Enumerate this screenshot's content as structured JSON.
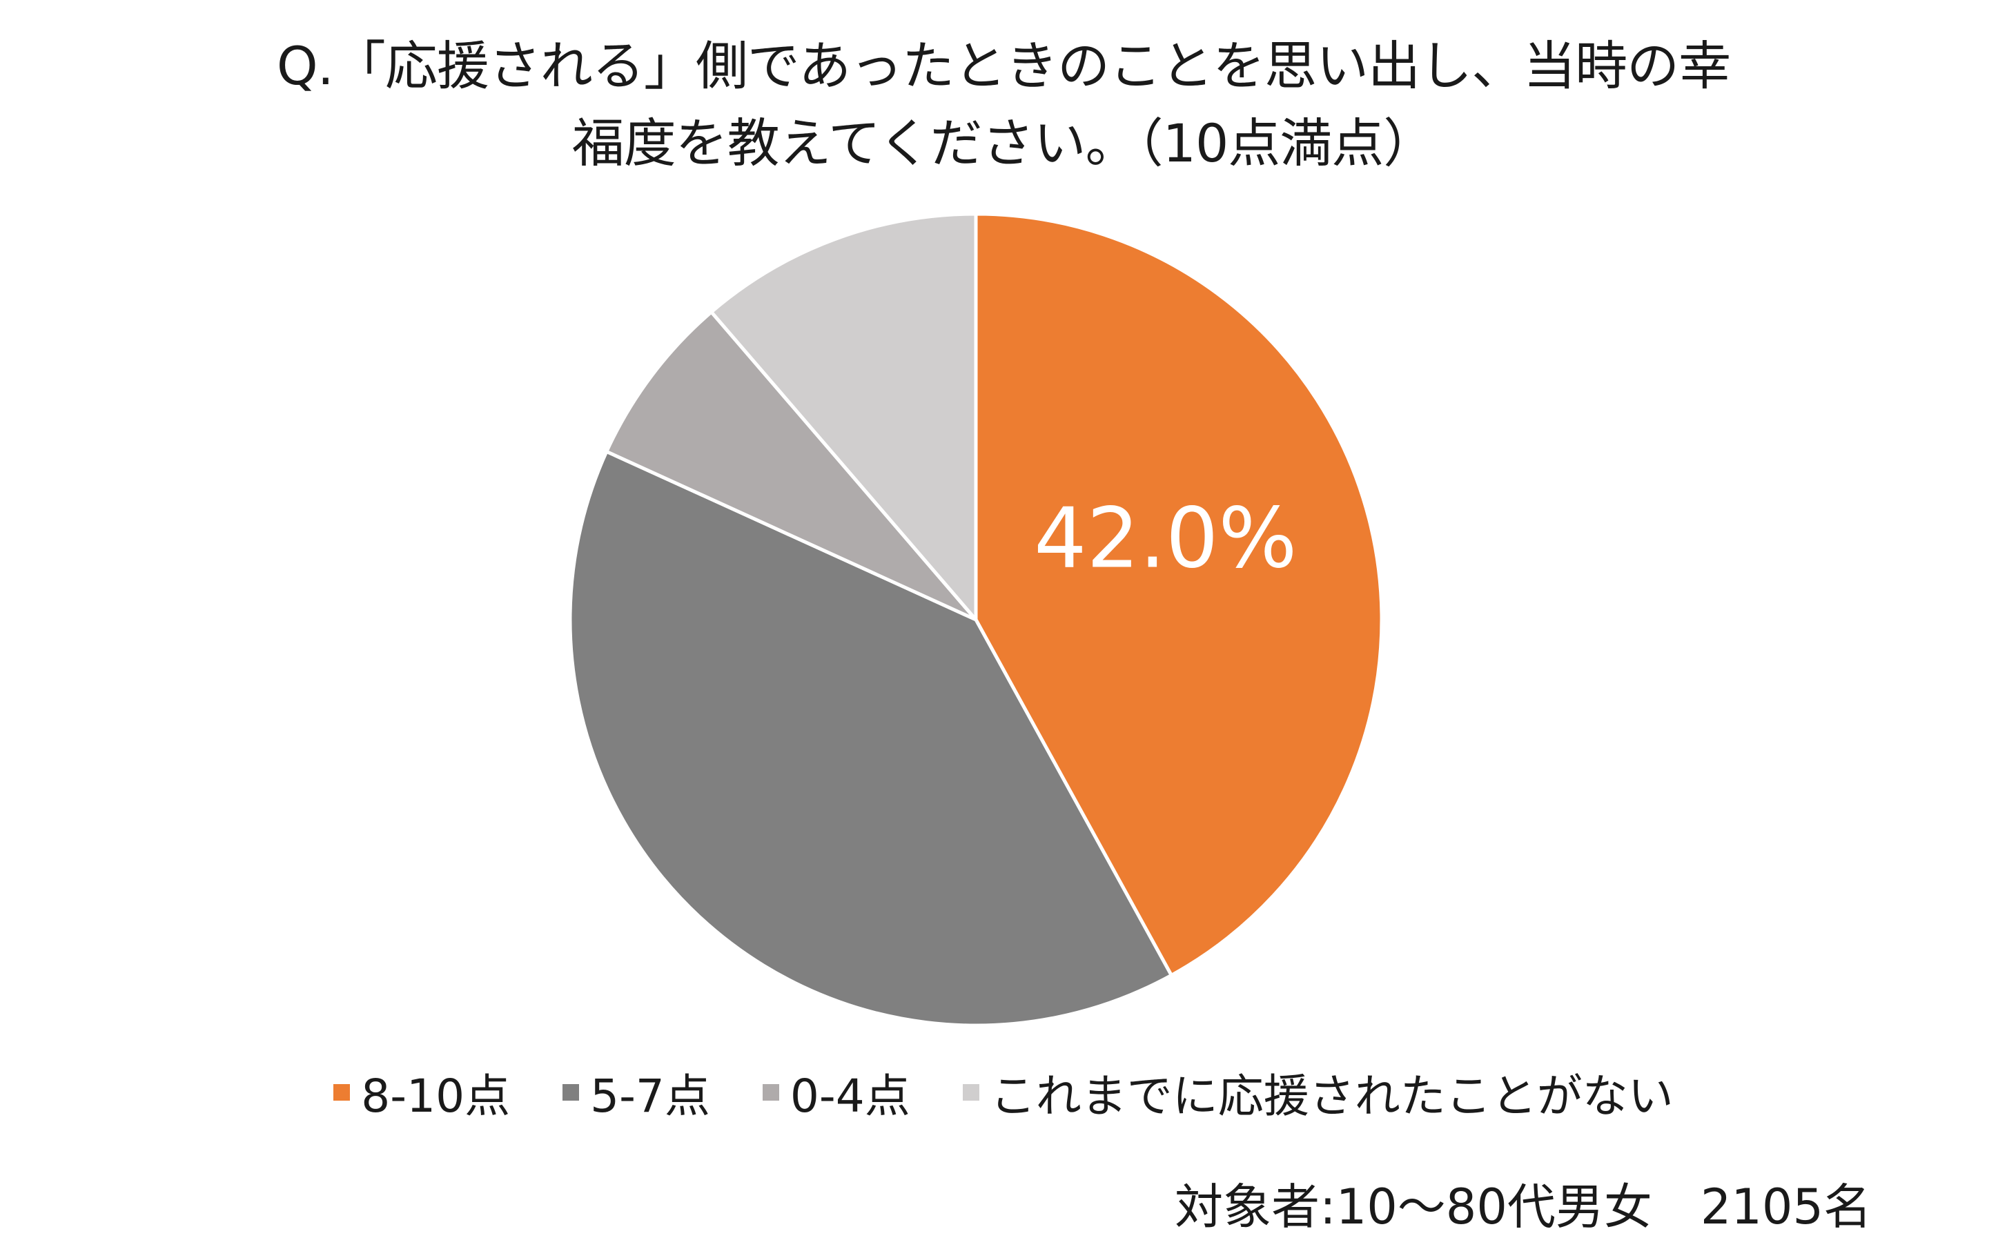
{
  "chart_data": {
    "type": "pie",
    "title_lines": [
      "Q.「応援される」側であったときのことを思い出し、当時の幸",
      "福度を教えてください。（10点満点）"
    ],
    "categories": [
      "8-10点",
      "5-7点",
      "0-4点",
      "これまでに応援されたことがない"
    ],
    "values": [
      42.0,
      39.8,
      6.9,
      11.3
    ],
    "colors": [
      "#ED7D31",
      "#808080",
      "#AFABAB",
      "#D0CECE"
    ],
    "data_labels": [
      "42.0%",
      "",
      "",
      ""
    ],
    "start_angle": "12 o'clock",
    "direction": "clockwise",
    "legend_position": "bottom"
  },
  "note": "対象者:10～80代男女　2105名"
}
